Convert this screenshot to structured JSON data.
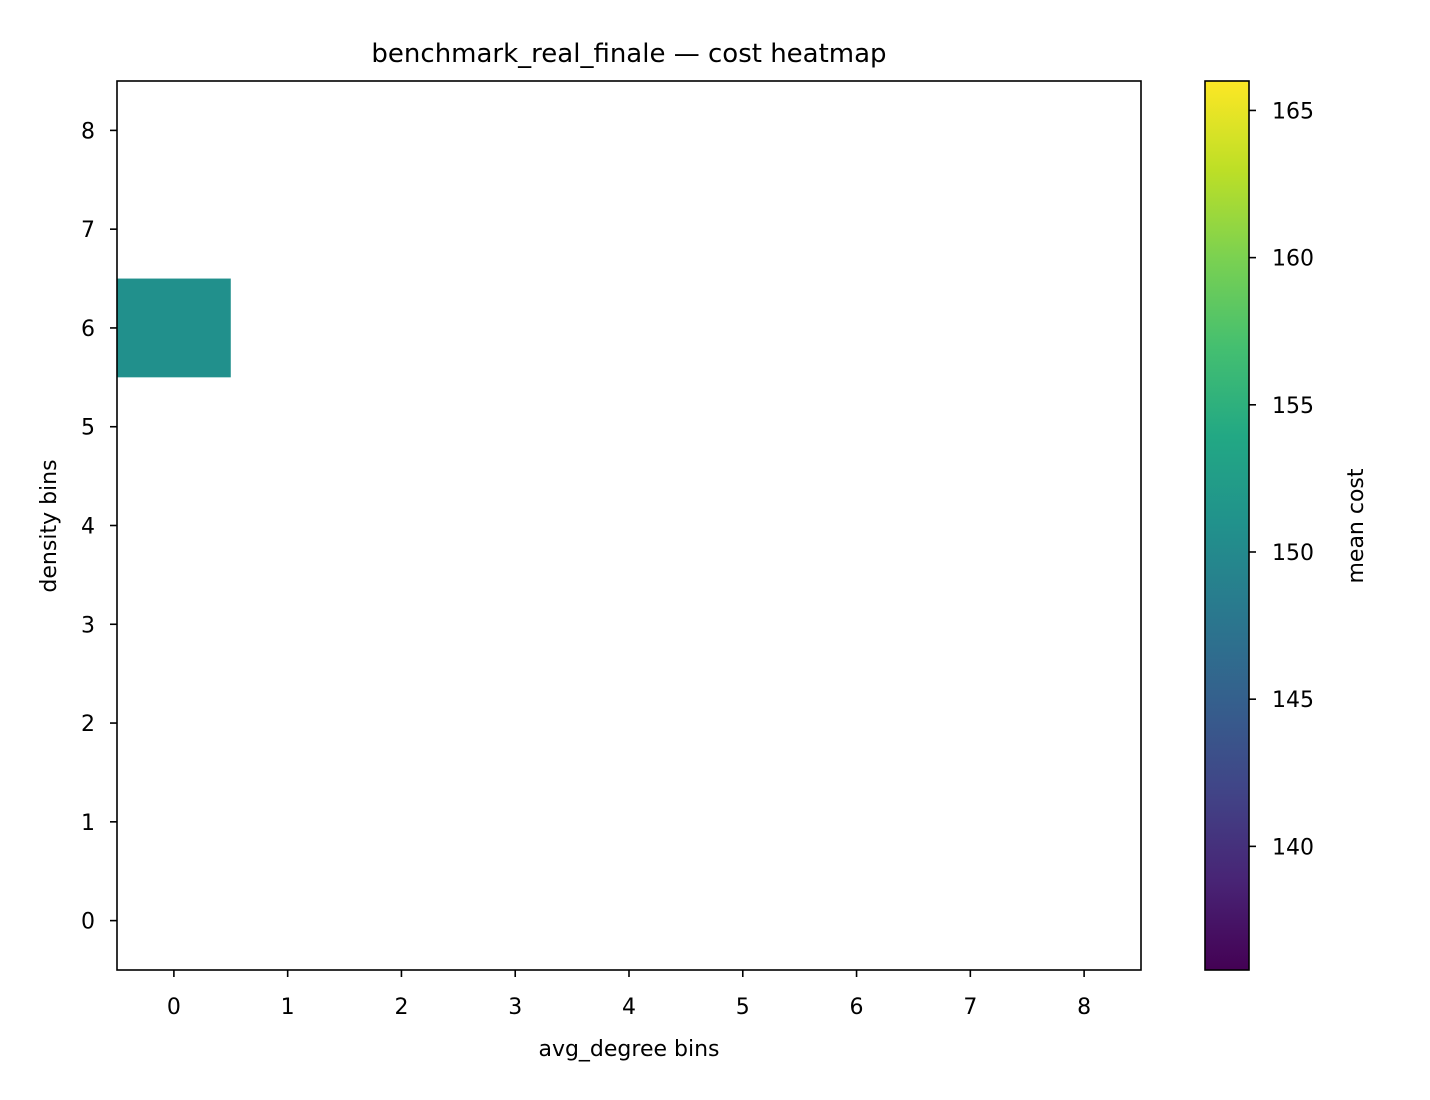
{
  "chart_data": {
    "type": "heatmap",
    "title": "benchmark_real_finale — cost heatmap",
    "xlabel": "avg_degree bins",
    "ylabel": "density bins",
    "x_categories": [
      "0",
      "1",
      "2",
      "3",
      "4",
      "5",
      "6",
      "7",
      "8"
    ],
    "y_categories": [
      "0",
      "1",
      "2",
      "3",
      "4",
      "5",
      "6",
      "7",
      "8"
    ],
    "xlim": [
      -0.5,
      8.5
    ],
    "ylim": [
      -0.5,
      8.5
    ],
    "cells": [
      {
        "x": 0,
        "y": 6,
        "value": 150.8
      }
    ],
    "colorbar": {
      "label": "mean cost",
      "colormap": "viridis",
      "range": [
        135.8,
        166
      ],
      "ticks": [
        "140",
        "145",
        "150",
        "155",
        "160",
        "165"
      ]
    },
    "grid": false,
    "legend": "none"
  }
}
